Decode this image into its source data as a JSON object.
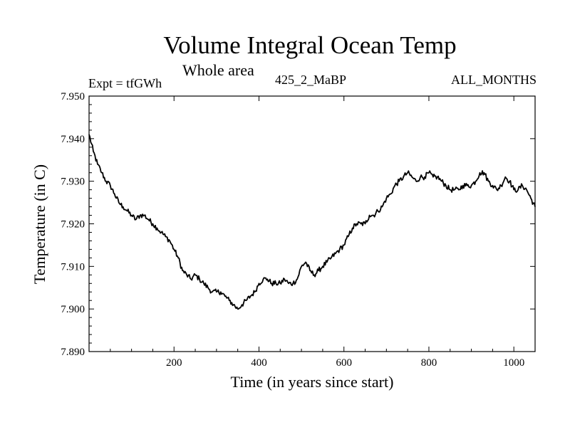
{
  "chart_data": {
    "type": "line",
    "title": "Volume Integral Ocean Temp",
    "subtitle": "Whole area",
    "annotation_left": "Expt = tfGWh",
    "annotation_center": "425_2_MaBP",
    "annotation_right": "ALL_MONTHS",
    "xlabel": "Time (in years since start)",
    "ylabel": "Temperature (in C)",
    "xlim": [
      0,
      1050
    ],
    "ylim": [
      7.89,
      7.95
    ],
    "xticks": [
      200,
      400,
      600,
      800,
      1000
    ],
    "xtick_labels": [
      "200",
      "400",
      "600",
      "800",
      "1000"
    ],
    "yticks": [
      7.89,
      7.9,
      7.91,
      7.92,
      7.93,
      7.94,
      7.95
    ],
    "ytick_labels": [
      "7.890",
      "7.900",
      "7.910",
      "7.920",
      "7.930",
      "7.940",
      "7.950"
    ],
    "grid": false,
    "series": [
      {
        "name": "Volume Integral Ocean Temp",
        "color": "#000000",
        "x": [
          0,
          10,
          20,
          30,
          40,
          50,
          60,
          70,
          80,
          90,
          100,
          110,
          120,
          130,
          140,
          150,
          160,
          170,
          180,
          190,
          200,
          210,
          220,
          230,
          240,
          250,
          260,
          270,
          280,
          290,
          300,
          310,
          320,
          330,
          340,
          350,
          360,
          370,
          380,
          390,
          400,
          410,
          420,
          430,
          440,
          450,
          460,
          470,
          480,
          490,
          500,
          510,
          520,
          530,
          540,
          550,
          560,
          570,
          580,
          590,
          600,
          610,
          620,
          630,
          640,
          650,
          660,
          670,
          680,
          690,
          700,
          710,
          720,
          730,
          740,
          750,
          760,
          770,
          780,
          790,
          800,
          810,
          820,
          830,
          840,
          850,
          860,
          870,
          880,
          890,
          900,
          910,
          920,
          930,
          940,
          950,
          960,
          970,
          980,
          990,
          1000,
          1010,
          1020,
          1030,
          1040,
          1050
        ],
        "values": [
          7.941,
          7.937,
          7.934,
          7.932,
          7.93,
          7.929,
          7.927,
          7.925,
          7.924,
          7.923,
          7.922,
          7.921,
          7.922,
          7.922,
          7.921,
          7.92,
          7.919,
          7.918,
          7.917,
          7.916,
          7.914,
          7.912,
          7.909,
          7.908,
          7.907,
          7.908,
          7.907,
          7.906,
          7.905,
          7.904,
          7.904,
          7.904,
          7.903,
          7.902,
          7.901,
          7.9,
          7.901,
          7.902,
          7.903,
          7.904,
          7.906,
          7.907,
          7.907,
          7.906,
          7.906,
          7.906,
          7.907,
          7.906,
          7.906,
          7.907,
          7.91,
          7.911,
          7.909,
          7.908,
          7.909,
          7.91,
          7.911,
          7.912,
          7.913,
          7.914,
          7.915,
          7.917,
          7.919,
          7.92,
          7.92,
          7.92,
          7.922,
          7.922,
          7.923,
          7.924,
          7.926,
          7.927,
          7.929,
          7.93,
          7.931,
          7.932,
          7.931,
          7.93,
          7.931,
          7.931,
          7.932,
          7.931,
          7.931,
          7.93,
          7.929,
          7.928,
          7.928,
          7.928,
          7.929,
          7.929,
          7.929,
          7.93,
          7.932,
          7.932,
          7.93,
          7.929,
          7.928,
          7.929,
          7.931,
          7.93,
          7.928,
          7.928,
          7.929,
          7.928,
          7.926,
          7.924
        ]
      }
    ]
  }
}
